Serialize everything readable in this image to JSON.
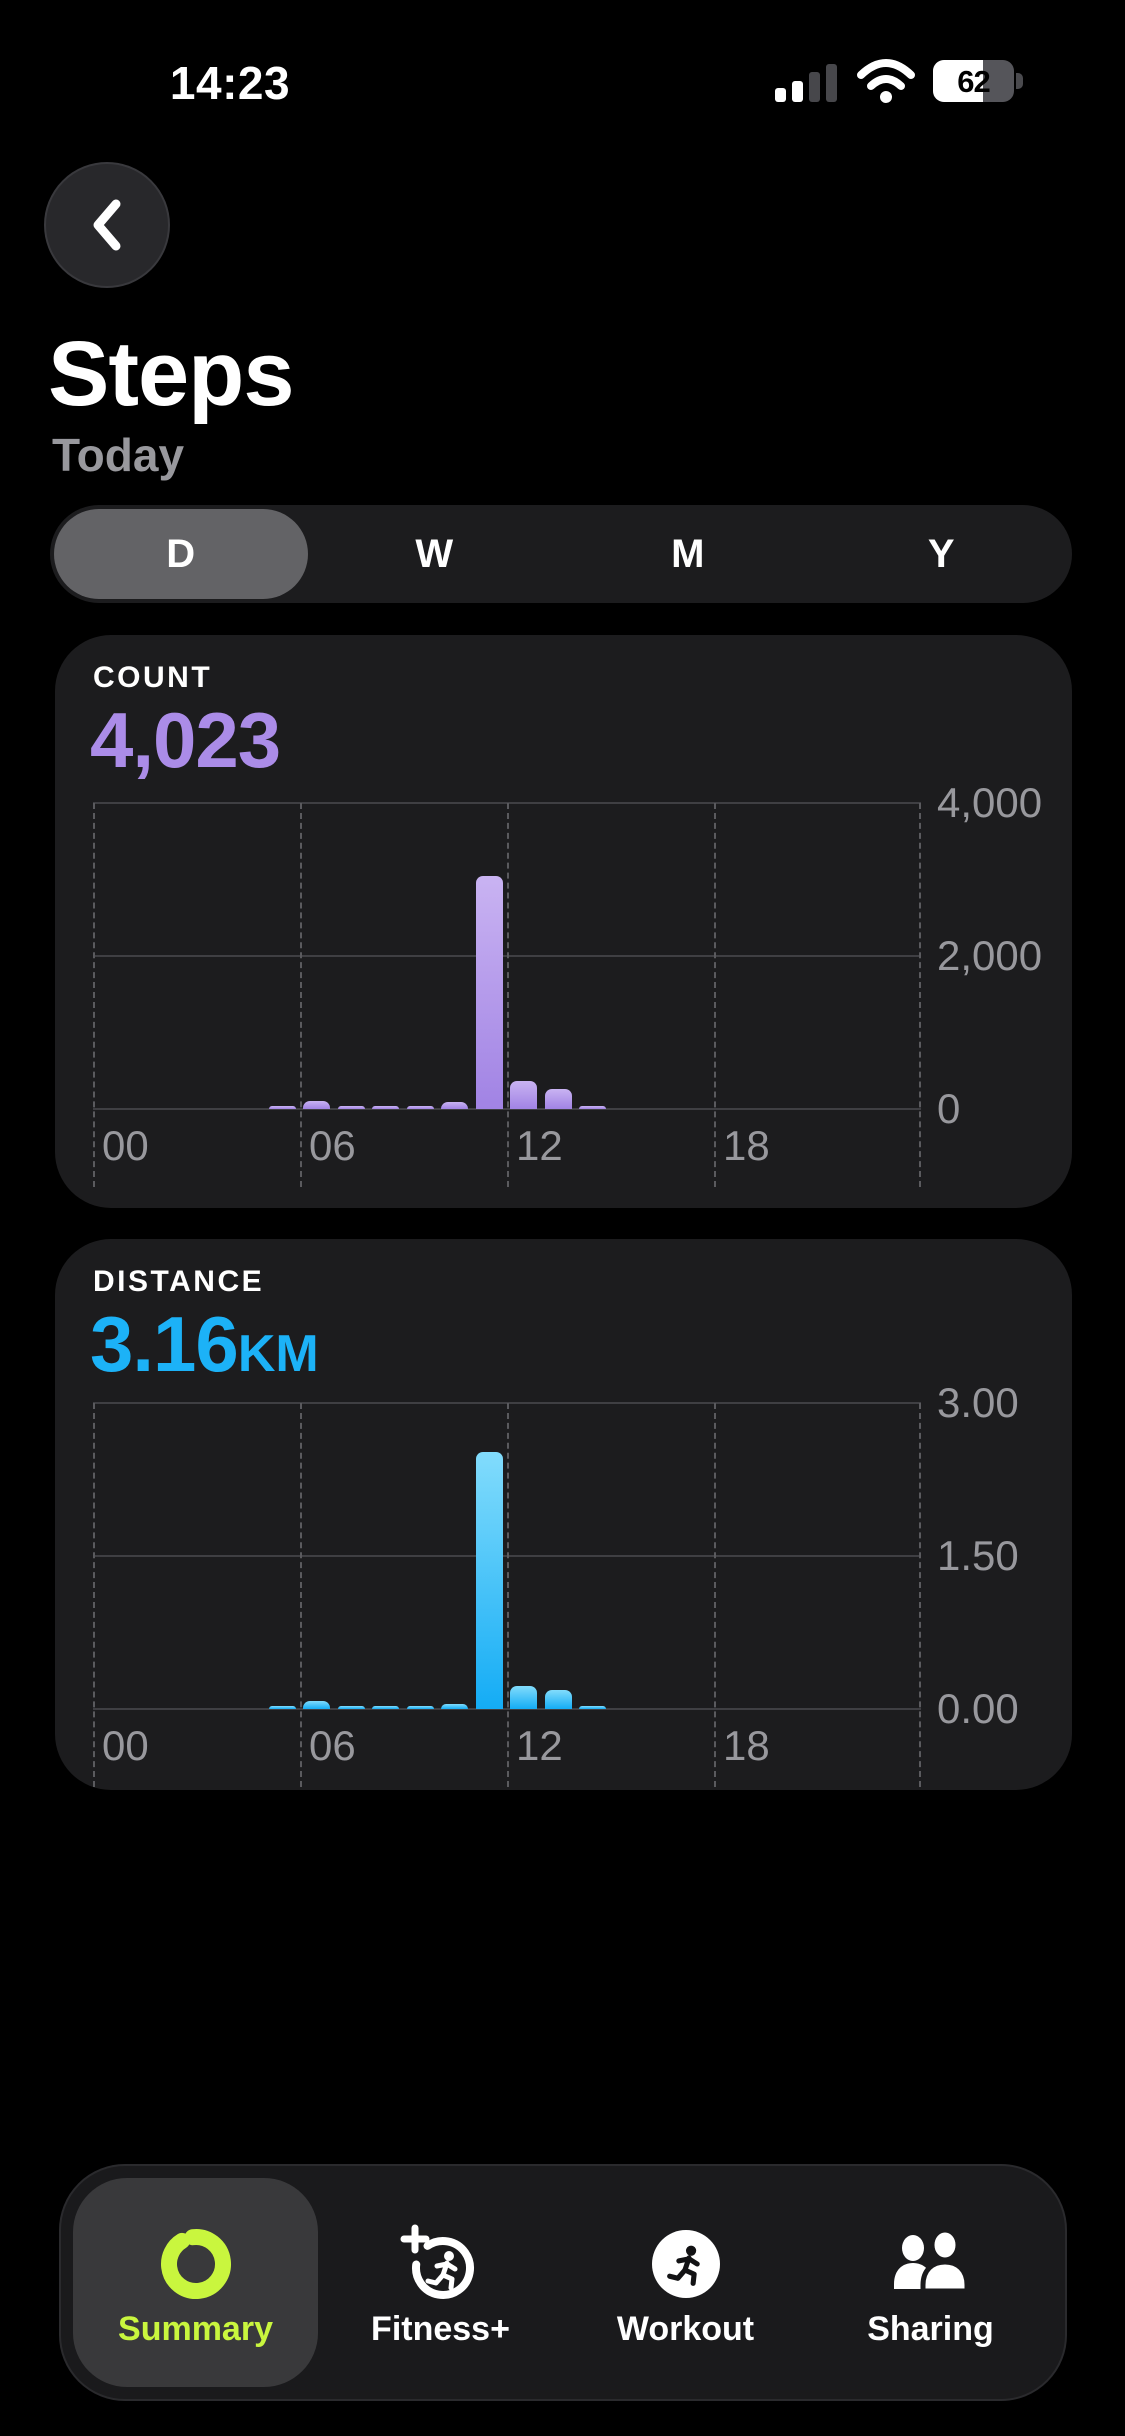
{
  "status_bar": {
    "time": "14:23",
    "battery_percent": "62",
    "cellular_bars_filled": 2,
    "cellular_bars_total": 4,
    "wifi": "full"
  },
  "header": {
    "back_icon": "chevron-left-icon",
    "title": "Steps",
    "subtitle": "Today"
  },
  "range_selector": {
    "options": [
      {
        "label": "D",
        "selected": true
      },
      {
        "label": "W",
        "selected": false
      },
      {
        "label": "M",
        "selected": false
      },
      {
        "label": "Y",
        "selected": false
      }
    ]
  },
  "count_card": {
    "title": "COUNT",
    "value": "4,023",
    "accent_color": "#ab8ce8",
    "chart_data": {
      "type": "bar",
      "title": "Step count by hour",
      "x_unit": "hour of day",
      "x_range": [
        0,
        24
      ],
      "x_ticks": [
        "00",
        "06",
        "12",
        "18"
      ],
      "ylim": [
        0,
        4000
      ],
      "y_ticks": [
        "0",
        "2,000",
        "4,000"
      ],
      "y_axis_side": "right",
      "grid": "horizontal solid, vertical dashed",
      "bar_theme": "bar-purple",
      "values": [
        0,
        0,
        0,
        0,
        0,
        30,
        110,
        20,
        30,
        30,
        90,
        3050,
        370,
        265,
        28,
        0,
        0,
        0,
        0,
        0,
        0,
        0,
        0,
        0
      ]
    }
  },
  "distance_card": {
    "title": "DISTANCE",
    "value": "3.16",
    "unit": "KM",
    "accent_color": "#1cb2f7",
    "chart_data": {
      "type": "bar",
      "title": "Distance (km) by hour",
      "x_unit": "hour of day",
      "x_range": [
        0,
        24
      ],
      "x_ticks": [
        "00",
        "06",
        "12",
        "18"
      ],
      "ylim": [
        0,
        3
      ],
      "y_ticks": [
        "0.00",
        "1.50",
        "3.00"
      ],
      "y_axis_side": "right",
      "grid": "horizontal solid, vertical dashed",
      "bar_theme": "bar-blue",
      "values": [
        0,
        0,
        0,
        0,
        0,
        0.01,
        0.08,
        0.01,
        0.02,
        0.02,
        0.05,
        2.52,
        0.23,
        0.19,
        0.03,
        0,
        0,
        0,
        0,
        0,
        0,
        0,
        0,
        0
      ]
    }
  },
  "tab_bar": {
    "accent_color": "#c9f63e",
    "items": [
      {
        "label": "Summary",
        "icon": "activity-ring-icon",
        "selected": true
      },
      {
        "label": "Fitness+",
        "icon": "fitness-plus-icon",
        "selected": false
      },
      {
        "label": "Workout",
        "icon": "workout-runner-icon",
        "selected": false
      },
      {
        "label": "Sharing",
        "icon": "sharing-people-icon",
        "selected": false
      }
    ]
  }
}
